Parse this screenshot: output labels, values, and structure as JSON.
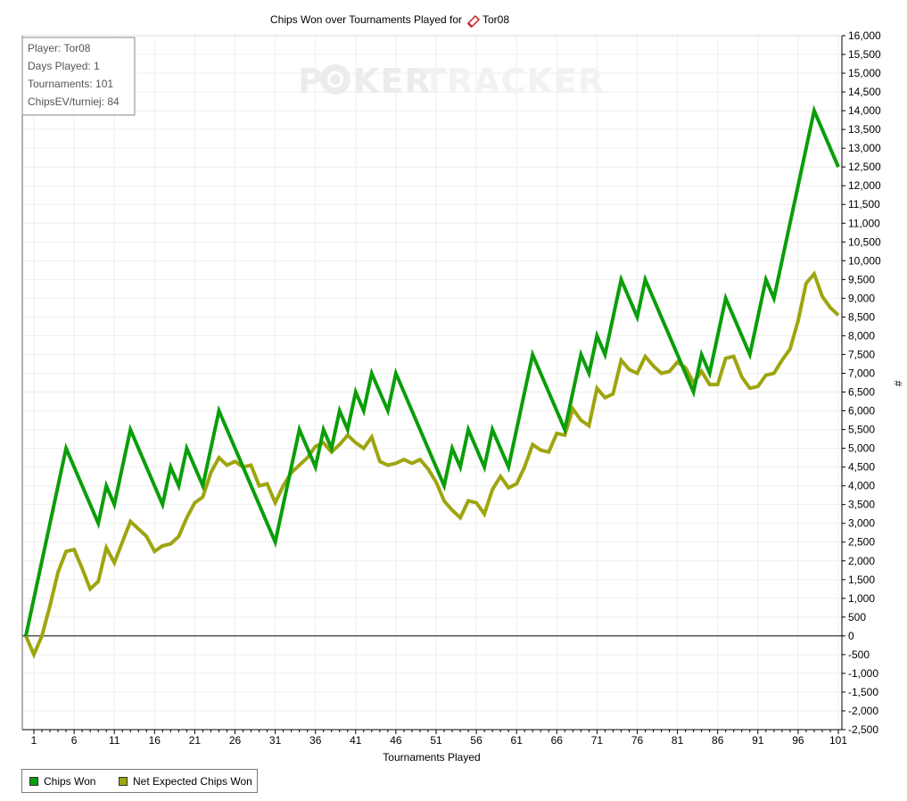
{
  "chart_data": {
    "type": "line",
    "title": "Chips Won over Tournaments Played for",
    "player_name": "Tor08",
    "xlabel": "Tournaments Played",
    "ylabel": "#",
    "xlim": [
      1,
      101
    ],
    "ylim": [
      -2500,
      16000
    ],
    "x_ticks": [
      1,
      6,
      11,
      16,
      21,
      26,
      31,
      36,
      41,
      46,
      51,
      56,
      61,
      66,
      71,
      76,
      81,
      86,
      91,
      96,
      101
    ],
    "y_ticks": [
      16000,
      15500,
      15000,
      14500,
      14000,
      13500,
      13000,
      12500,
      12000,
      11500,
      11000,
      10500,
      10000,
      9500,
      9000,
      8500,
      8000,
      7500,
      7000,
      6500,
      6000,
      5500,
      5000,
      4500,
      4000,
      3500,
      3000,
      2500,
      2000,
      1500,
      1000,
      500,
      0,
      -500,
      -1000,
      -1500,
      -2000,
      -2500
    ],
    "y_tick_labels": [
      "16,000",
      "15,500",
      "15,000",
      "14,500",
      "14,000",
      "13,500",
      "13,000",
      "12,500",
      "12,000",
      "11,500",
      "11,000",
      "10,500",
      "10,000",
      "9,500",
      "9,000",
      "8,500",
      "8,000",
      "7,500",
      "7,000",
      "6,500",
      "6,000",
      "5,500",
      "5,000",
      "4,500",
      "4,000",
      "3,500",
      "3,000",
      "2,500",
      "2,000",
      "1,500",
      "1,000",
      "500",
      "0",
      "-500",
      "-1,000",
      "-1,500",
      "-2,000",
      "-2,500"
    ],
    "grid": true,
    "legend_position": "bottom-left",
    "series": [
      {
        "name": "Chips Won",
        "color": "#0a9e0a",
        "points": [
          [
            0,
            0
          ],
          [
            5,
            5000
          ],
          [
            9,
            3000
          ],
          [
            10,
            4000
          ],
          [
            11,
            3500
          ],
          [
            13,
            5500
          ],
          [
            17,
            3500
          ],
          [
            18,
            4500
          ],
          [
            19,
            4000
          ],
          [
            20,
            5000
          ],
          [
            22,
            4000
          ],
          [
            24,
            6000
          ],
          [
            31,
            2500
          ],
          [
            34,
            5500
          ],
          [
            36,
            4500
          ],
          [
            37,
            5500
          ],
          [
            38,
            5000
          ],
          [
            39,
            6000
          ],
          [
            40,
            5500
          ],
          [
            41,
            6500
          ],
          [
            42,
            6000
          ],
          [
            43,
            7000
          ],
          [
            45,
            6000
          ],
          [
            46,
            7000
          ],
          [
            52,
            4000
          ],
          [
            53,
            5000
          ],
          [
            54,
            4500
          ],
          [
            55,
            5500
          ],
          [
            57,
            4500
          ],
          [
            58,
            5500
          ],
          [
            60,
            4500
          ],
          [
            63,
            7500
          ],
          [
            67,
            5500
          ],
          [
            69,
            7500
          ],
          [
            70,
            7000
          ],
          [
            71,
            8000
          ],
          [
            72,
            7500
          ],
          [
            74,
            9500
          ],
          [
            76,
            8500
          ],
          [
            77,
            9500
          ],
          [
            83,
            6500
          ],
          [
            84,
            7500
          ],
          [
            85,
            7000
          ],
          [
            87,
            9000
          ],
          [
            90,
            7500
          ],
          [
            92,
            9500
          ],
          [
            93,
            9000
          ],
          [
            98,
            14000
          ],
          [
            101,
            12500
          ]
        ]
      },
      {
        "name": "Net Expected Chips Won",
        "color": "#9ea50f",
        "points": [
          [
            0,
            0
          ],
          [
            1,
            -500
          ],
          [
            2,
            0
          ],
          [
            3,
            800
          ],
          [
            4,
            1700
          ],
          [
            5,
            2250
          ],
          [
            6,
            2300
          ],
          [
            7,
            1800
          ],
          [
            8,
            1250
          ],
          [
            9,
            1450
          ],
          [
            10,
            2350
          ],
          [
            11,
            1950
          ],
          [
            12,
            2500
          ],
          [
            13,
            3050
          ],
          [
            14,
            2850
          ],
          [
            15,
            2650
          ],
          [
            16,
            2250
          ],
          [
            17,
            2400
          ],
          [
            18,
            2450
          ],
          [
            19,
            2650
          ],
          [
            20,
            3150
          ],
          [
            21,
            3550
          ],
          [
            22,
            3700
          ],
          [
            23,
            4350
          ],
          [
            24,
            4750
          ],
          [
            25,
            4550
          ],
          [
            26,
            4650
          ],
          [
            27,
            4500
          ],
          [
            28,
            4550
          ],
          [
            29,
            4000
          ],
          [
            30,
            4050
          ],
          [
            31,
            3550
          ],
          [
            32,
            4000
          ],
          [
            33,
            4350
          ],
          [
            34,
            4550
          ],
          [
            35,
            4750
          ],
          [
            36,
            5050
          ],
          [
            37,
            5150
          ],
          [
            38,
            4900
          ],
          [
            39,
            5100
          ],
          [
            40,
            5350
          ],
          [
            41,
            5150
          ],
          [
            42,
            5000
          ],
          [
            43,
            5300
          ],
          [
            44,
            4650
          ],
          [
            45,
            4550
          ],
          [
            46,
            4600
          ],
          [
            47,
            4700
          ],
          [
            48,
            4600
          ],
          [
            49,
            4700
          ],
          [
            50,
            4450
          ],
          [
            51,
            4100
          ],
          [
            52,
            3600
          ],
          [
            53,
            3350
          ],
          [
            54,
            3150
          ],
          [
            55,
            3600
          ],
          [
            56,
            3550
          ],
          [
            57,
            3250
          ],
          [
            58,
            3900
          ],
          [
            59,
            4250
          ],
          [
            60,
            3950
          ],
          [
            61,
            4050
          ],
          [
            62,
            4500
          ],
          [
            63,
            5100
          ],
          [
            64,
            4950
          ],
          [
            65,
            4900
          ],
          [
            66,
            5400
          ],
          [
            67,
            5350
          ],
          [
            68,
            6050
          ],
          [
            69,
            5750
          ],
          [
            70,
            5600
          ],
          [
            71,
            6600
          ],
          [
            72,
            6350
          ],
          [
            73,
            6450
          ],
          [
            74,
            7350
          ],
          [
            75,
            7100
          ],
          [
            76,
            7000
          ],
          [
            77,
            7450
          ],
          [
            78,
            7200
          ],
          [
            79,
            7000
          ],
          [
            80,
            7050
          ],
          [
            81,
            7300
          ],
          [
            82,
            7150
          ],
          [
            83,
            6750
          ],
          [
            84,
            7050
          ],
          [
            85,
            6700
          ],
          [
            86,
            6700
          ],
          [
            87,
            7400
          ],
          [
            88,
            7450
          ],
          [
            89,
            6900
          ],
          [
            90,
            6600
          ],
          [
            91,
            6650
          ],
          [
            92,
            6950
          ],
          [
            93,
            7000
          ],
          [
            94,
            7350
          ],
          [
            95,
            7650
          ],
          [
            96,
            8400
          ],
          [
            97,
            9400
          ],
          [
            98,
            9650
          ],
          [
            99,
            9050
          ],
          [
            100,
            8750
          ],
          [
            101,
            8550
          ]
        ]
      }
    ]
  },
  "info_box": {
    "lines": [
      "Player: Tor08",
      "Days Played: 1",
      "Tournaments: 101",
      "ChipsEV/turniej: 84"
    ]
  },
  "watermark": {
    "left": "P",
    "middle": "KER",
    "right": "TRACKER"
  },
  "legend": {
    "items": [
      {
        "label": "Chips Won",
        "color": "#0a9e0a"
      },
      {
        "label": "Net Expected Chips Won",
        "color": "#9ea50f"
      }
    ]
  }
}
